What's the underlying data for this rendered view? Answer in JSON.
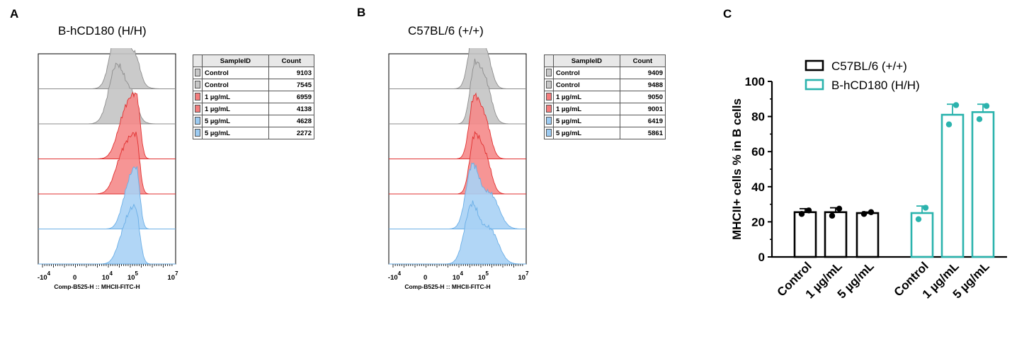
{
  "panels": {
    "a": {
      "letter": "A",
      "title": "B-hCD180 (H/H)",
      "xlabel": "Comp-B525-H :: MHCII-FITC-H",
      "table": {
        "headers": [
          "SampleID",
          "Count"
        ],
        "rows": [
          {
            "sample": "Control",
            "count": "9103",
            "color": "#c8c8c8"
          },
          {
            "sample": "Control",
            "count": "7545",
            "color": "#c8c8c8"
          },
          {
            "sample": "1 µg/mL",
            "count": "6959",
            "color": "#f47c7c"
          },
          {
            "sample": "1 µg/mL",
            "count": "4138",
            "color": "#f47c7c"
          },
          {
            "sample": "5 µg/mL",
            "count": "4628",
            "color": "#9ccbf2"
          },
          {
            "sample": "5 µg/mL",
            "count": "2272",
            "color": "#9ccbf2"
          }
        ]
      }
    },
    "b": {
      "letter": "B",
      "title": "C57BL/6 (+/+)",
      "xlabel": "Comp-B525-H :: MHCII-FITC-H",
      "table": {
        "headers": [
          "SampleID",
          "Count"
        ],
        "rows": [
          {
            "sample": "Control",
            "count": "9409",
            "color": "#c8c8c8"
          },
          {
            "sample": "Control",
            "count": "9488",
            "color": "#c8c8c8"
          },
          {
            "sample": "1 µg/mL",
            "count": "9050",
            "color": "#f47c7c"
          },
          {
            "sample": "1 µg/mL",
            "count": "9001",
            "color": "#f47c7c"
          },
          {
            "sample": "5 µg/mL",
            "count": "6419",
            "color": "#9ccbf2"
          },
          {
            "sample": "5 µg/mL",
            "count": "5861",
            "color": "#9ccbf2"
          }
        ]
      }
    },
    "c": {
      "letter": "C"
    }
  },
  "axis_ticks": {
    "histogram_x": [
      {
        "base": "-10",
        "exp": "4"
      },
      {
        "base": "0",
        "exp": ""
      },
      {
        "base": "10",
        "exp": "4"
      },
      {
        "base": "10",
        "exp": "5"
      },
      {
        "base": "10",
        "exp": "7"
      }
    ]
  },
  "chart_data": [
    {
      "type": "area",
      "panel": "A",
      "title": "B-hCD180 (H/H)",
      "xlabel": "Comp-B525-H :: MHCII-FITC-H",
      "x_scale": "biexponential",
      "series": [
        {
          "name": "Control",
          "count": 9103,
          "color": "#c8c8c8",
          "peak_x": 20000
        },
        {
          "name": "Control",
          "count": 7545,
          "color": "#c8c8c8",
          "peak_x": 18000
        },
        {
          "name": "1 µg/mL",
          "count": 6959,
          "color": "#f47c7c",
          "peak_x": 150000
        },
        {
          "name": "1 µg/mL",
          "count": 4138,
          "color": "#f47c7c",
          "peak_x": 140000
        },
        {
          "name": "5 µg/mL",
          "count": 4628,
          "color": "#9ccbf2",
          "peak_x": 145000
        },
        {
          "name": "5 µg/mL",
          "count": 2272,
          "color": "#9ccbf2",
          "peak_x": 130000
        }
      ]
    },
    {
      "type": "area",
      "panel": "B",
      "title": "C57BL/6 (+/+)",
      "xlabel": "Comp-B525-H :: MHCII-FITC-H",
      "x_scale": "biexponential",
      "series": [
        {
          "name": "Control",
          "count": 9409,
          "color": "#c8c8c8",
          "peak_x": 40000
        },
        {
          "name": "Control",
          "count": 9488,
          "color": "#c8c8c8",
          "peak_x": 42000
        },
        {
          "name": "1 µg/mL",
          "count": 9050,
          "color": "#f47c7c",
          "peak_x": 38000
        },
        {
          "name": "1 µg/mL",
          "count": 9001,
          "color": "#f47c7c",
          "peak_x": 40000
        },
        {
          "name": "5 µg/mL",
          "count": 6419,
          "color": "#9ccbf2",
          "peak_x": 30000
        },
        {
          "name": "5 µg/mL",
          "count": 5861,
          "color": "#9ccbf2",
          "peak_x": 28000
        }
      ]
    },
    {
      "type": "bar",
      "panel": "C",
      "ylabel": "MHCII+ cells % in B cells",
      "ylim": [
        0,
        100
      ],
      "yticks": [
        0,
        20,
        40,
        60,
        80,
        100
      ],
      "legend": "top-left",
      "categories": [
        "Control",
        "1 µg/mL",
        "5 µg/mL"
      ],
      "series": [
        {
          "name": "C57BL/6 (+/+)",
          "color": "#000000",
          "values": [
            25.5,
            25.5,
            25.0
          ],
          "errors": [
            2.0,
            2.5,
            0.6
          ],
          "points": [
            [
              26.5,
              24.5
            ],
            [
              27.5,
              23.5
            ],
            [
              25.5,
              24.5
            ]
          ]
        },
        {
          "name": "B-hCD180 (H/H)",
          "color": "#2bb3ad",
          "values": [
            25.0,
            81.0,
            82.5
          ],
          "errors": [
            4.0,
            6.0,
            4.5
          ],
          "points": [
            [
              28.0,
              21.5
            ],
            [
              86.5,
              75.5
            ],
            [
              86.0,
              78.5
            ]
          ]
        }
      ]
    }
  ]
}
